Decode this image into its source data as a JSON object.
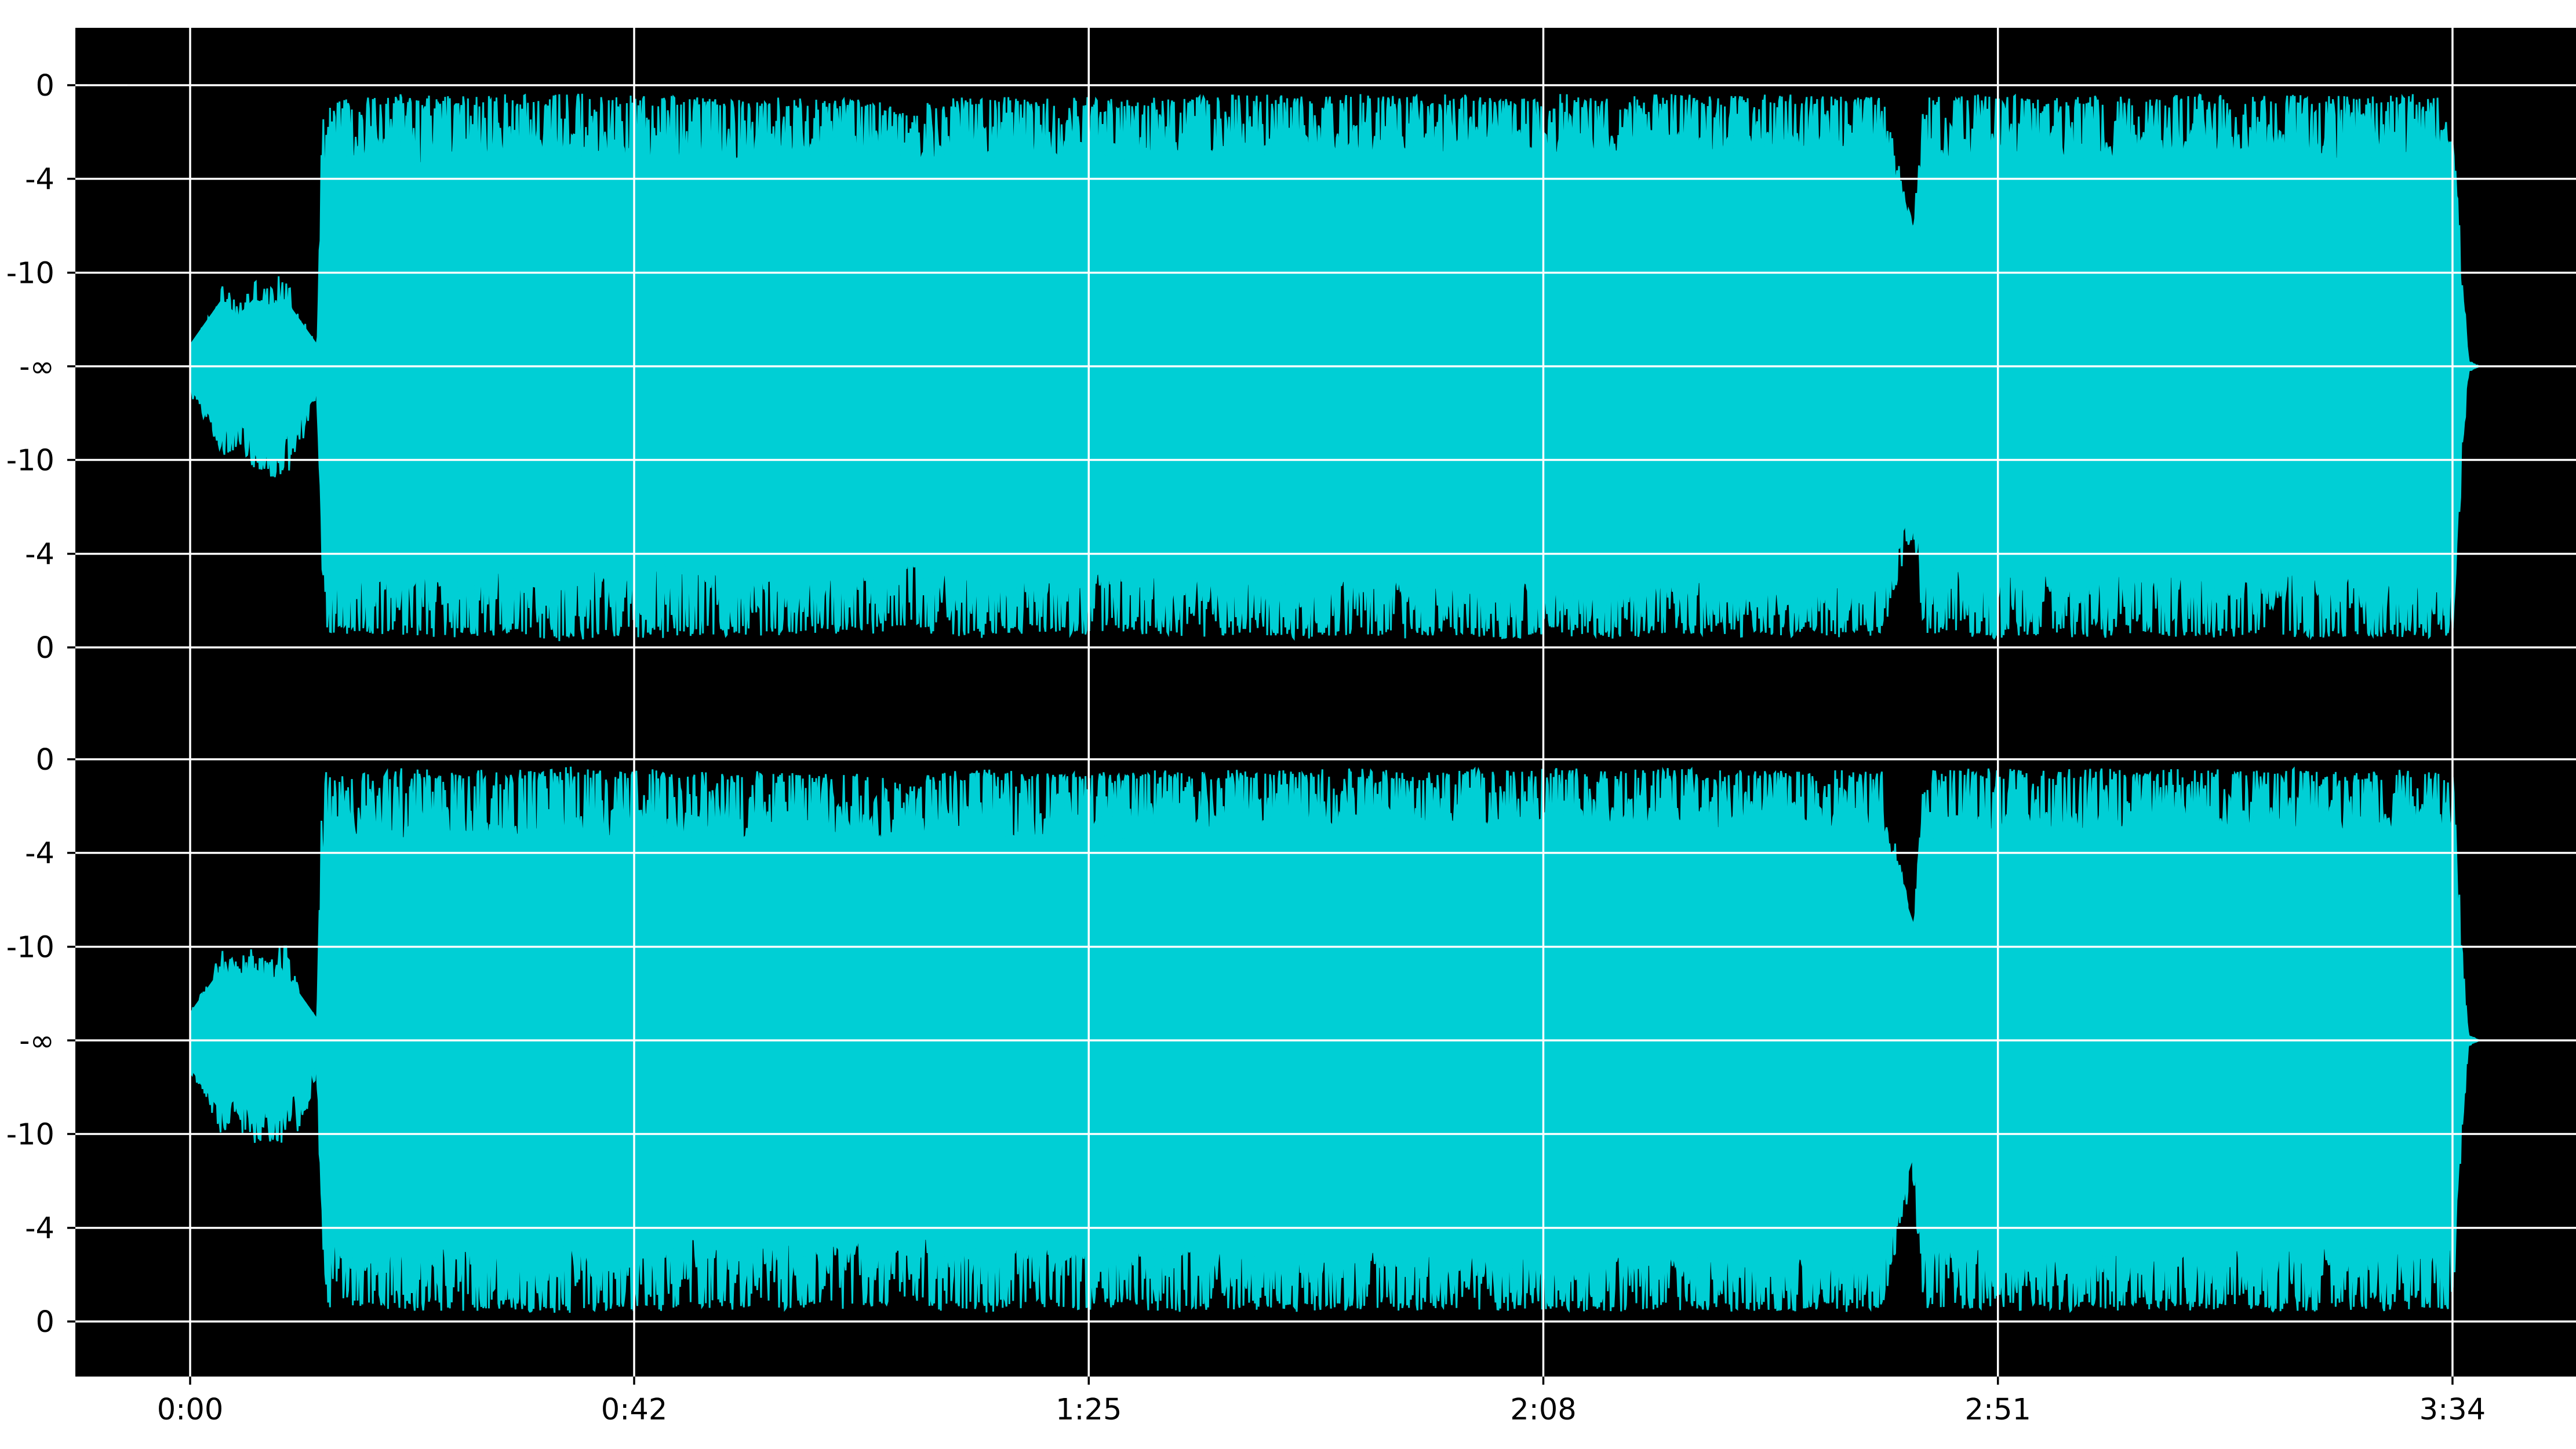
{
  "chart_data": {
    "type": "area",
    "title": "",
    "xlabel": "",
    "ylabel": "",
    "x_ticks": [
      "0:00",
      "0:42",
      "1:25",
      "2:08",
      "2:51",
      "3:34"
    ],
    "x_tick_seconds": [
      0,
      42,
      85,
      128,
      171,
      214
    ],
    "duration_seconds": 216.5,
    "y_ticks": [
      "0",
      "-4",
      "-10",
      "-∞",
      "-10",
      "-4",
      "0"
    ],
    "y_ticks_db": [
      0,
      -4,
      -10,
      null,
      -10,
      -4,
      0
    ],
    "y_ticks_amplitude": [
      1,
      0.667,
      0.333,
      0,
      -0.333,
      -0.667,
      -1
    ],
    "grid": true,
    "colors": {
      "waveform": "#00cfd5",
      "background": "#000000",
      "grid": "#ffffff"
    },
    "series": [
      {
        "envelope_x": [
          0,
          1.5,
          3,
          4.5,
          6,
          7.5,
          9,
          10.5,
          12,
          12.5,
          13,
          15,
          20,
          25,
          30,
          34,
          35,
          40,
          45,
          50,
          55,
          60,
          63,
          65,
          68,
          70,
          75,
          80,
          85,
          88,
          90,
          95,
          100,
          105,
          110,
          115,
          120,
          125,
          130,
          135,
          140,
          145,
          150,
          155,
          160,
          163,
          164,
          165,
          170,
          175,
          180,
          185,
          190,
          195,
          200,
          205,
          210,
          214,
          215,
          215.5,
          216.5
        ],
        "envelope_top": [
          0.08,
          0.16,
          0.3,
          0.22,
          0.32,
          0.28,
          0.35,
          0.18,
          0.08,
          0.9,
          0.97,
          0.95,
          0.97,
          0.96,
          0.97,
          0.96,
          0.98,
          0.96,
          0.97,
          0.95,
          0.96,
          0.95,
          0.96,
          0.95,
          0.9,
          0.95,
          0.97,
          0.95,
          0.96,
          0.95,
          0.97,
          0.96,
          0.97,
          0.96,
          0.97,
          0.96,
          0.97,
          0.96,
          0.97,
          0.96,
          0.97,
          0.96,
          0.97,
          0.96,
          0.97,
          0.5,
          0.97,
          0.96,
          0.97,
          0.96,
          0.97,
          0.96,
          0.97,
          0.96,
          0.97,
          0.96,
          0.97,
          0.96,
          0.3,
          0.02,
          0.0
        ],
        "envelope_bottom": [
          -0.1,
          -0.2,
          -0.32,
          -0.3,
          -0.36,
          -0.42,
          -0.4,
          -0.3,
          -0.1,
          -0.72,
          -0.97,
          -0.95,
          -0.96,
          -0.97,
          -0.96,
          -0.97,
          -0.98,
          -0.96,
          -0.97,
          -0.96,
          -0.96,
          -0.95,
          -0.96,
          -0.95,
          -0.92,
          -0.96,
          -0.97,
          -0.95,
          -0.96,
          -0.95,
          -0.96,
          -0.97,
          -0.96,
          -0.97,
          -0.96,
          -0.97,
          -0.96,
          -0.97,
          -0.96,
          -0.97,
          -0.96,
          -0.97,
          -0.96,
          -0.97,
          -0.96,
          -0.6,
          -0.97,
          -0.96,
          -0.97,
          -0.96,
          -0.97,
          -0.96,
          -0.97,
          -0.96,
          -0.97,
          -0.96,
          -0.97,
          -0.96,
          -0.3,
          -0.02,
          0.0
        ],
        "envelope_body": [
          0.08,
          0.16,
          0.24,
          0.18,
          0.24,
          0.22,
          0.24,
          0.16,
          0.08,
          0.6,
          0.66,
          0.74,
          0.7,
          0.74,
          0.72,
          0.75,
          0.73,
          0.72,
          0.7,
          0.71,
          0.72,
          0.74,
          0.7,
          0.73,
          0.68,
          0.72,
          0.73,
          0.72,
          0.74,
          0.7,
          0.73,
          0.74,
          0.75,
          0.76,
          0.74,
          0.75,
          0.76,
          0.75,
          0.76,
          0.75,
          0.76,
          0.75,
          0.77,
          0.76,
          0.76,
          0.48,
          0.7,
          0.72,
          0.73,
          0.74,
          0.73,
          0.74,
          0.75,
          0.74,
          0.73,
          0.74,
          0.75,
          0.74,
          0.22,
          0.02,
          0.0
        ]
      },
      {
        "envelope_x": [
          0,
          1.5,
          3,
          4.5,
          6,
          7.5,
          9,
          10.5,
          12,
          12.5,
          13,
          15,
          20,
          25,
          30,
          34,
          35,
          40,
          45,
          50,
          55,
          60,
          63,
          65,
          68,
          70,
          75,
          80,
          85,
          88,
          90,
          95,
          100,
          105,
          110,
          115,
          120,
          125,
          130,
          135,
          140,
          145,
          150,
          155,
          160,
          163,
          164,
          165,
          170,
          175,
          180,
          185,
          190,
          195,
          200,
          205,
          210,
          214,
          215,
          215.5,
          216.5
        ],
        "envelope_top": [
          0.12,
          0.2,
          0.32,
          0.3,
          0.33,
          0.28,
          0.36,
          0.16,
          0.08,
          0.92,
          0.97,
          0.95,
          0.97,
          0.96,
          0.97,
          0.96,
          0.98,
          0.96,
          0.97,
          0.95,
          0.96,
          0.95,
          0.96,
          0.95,
          0.9,
          0.95,
          0.97,
          0.95,
          0.96,
          0.95,
          0.97,
          0.96,
          0.97,
          0.96,
          0.97,
          0.96,
          0.97,
          0.96,
          0.97,
          0.96,
          0.97,
          0.96,
          0.97,
          0.96,
          0.97,
          0.4,
          0.97,
          0.96,
          0.97,
          0.96,
          0.97,
          0.96,
          0.97,
          0.96,
          0.97,
          0.96,
          0.97,
          0.96,
          0.3,
          0.02,
          0.0
        ],
        "envelope_bottom": [
          -0.12,
          -0.22,
          -0.34,
          -0.3,
          -0.4,
          -0.36,
          -0.38,
          -0.32,
          -0.12,
          -0.72,
          -0.97,
          -0.95,
          -0.96,
          -0.97,
          -0.96,
          -0.97,
          -0.98,
          -0.96,
          -0.97,
          -0.96,
          -0.96,
          -0.95,
          -0.96,
          -0.95,
          -0.92,
          -0.96,
          -0.97,
          -0.95,
          -0.96,
          -0.95,
          -0.96,
          -0.97,
          -0.96,
          -0.97,
          -0.96,
          -0.97,
          -0.96,
          -0.97,
          -0.96,
          -0.97,
          -0.96,
          -0.97,
          -0.96,
          -0.97,
          -0.96,
          -0.5,
          -0.97,
          -0.96,
          -0.97,
          -0.96,
          -0.97,
          -0.96,
          -0.97,
          -0.96,
          -0.97,
          -0.96,
          -0.97,
          -0.96,
          -0.3,
          -0.02,
          0.0
        ],
        "envelope_body": [
          0.1,
          0.18,
          0.26,
          0.2,
          0.26,
          0.22,
          0.24,
          0.16,
          0.08,
          0.6,
          0.66,
          0.73,
          0.7,
          0.73,
          0.71,
          0.75,
          0.72,
          0.72,
          0.7,
          0.71,
          0.72,
          0.73,
          0.7,
          0.72,
          0.66,
          0.71,
          0.72,
          0.72,
          0.73,
          0.7,
          0.72,
          0.73,
          0.75,
          0.75,
          0.74,
          0.75,
          0.75,
          0.75,
          0.76,
          0.75,
          0.76,
          0.75,
          0.76,
          0.76,
          0.75,
          0.42,
          0.7,
          0.72,
          0.73,
          0.74,
          0.73,
          0.74,
          0.75,
          0.74,
          0.73,
          0.74,
          0.75,
          0.74,
          0.22,
          0.02,
          0.0
        ]
      }
    ]
  }
}
